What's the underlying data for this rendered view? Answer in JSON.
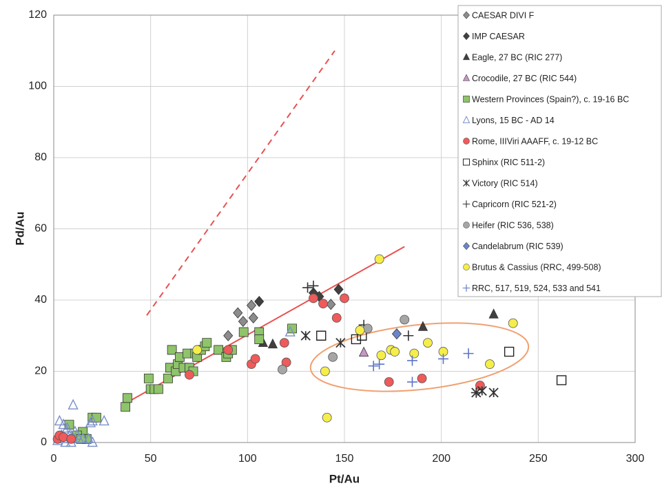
{
  "chart_data": {
    "type": "scatter",
    "x_label": "Pt/Au",
    "y_label": "Pd/Au",
    "xlim": [
      0,
      300
    ],
    "ylim": [
      0,
      120
    ],
    "xticks": [
      0,
      50,
      100,
      150,
      200,
      250,
      300
    ],
    "yticks": [
      0,
      20,
      40,
      60,
      80,
      100,
      120
    ],
    "grid": true,
    "legend": "top-right",
    "fit_lines": [
      {
        "x": [
          37,
          181
        ],
        "y": [
          11,
          55
        ],
        "color": "#e8504f",
        "dashed": false
      },
      {
        "x": [
          48,
          145
        ],
        "y": [
          35.7,
          110
        ],
        "color": "#e8504f",
        "dashed": true
      }
    ],
    "series": [
      {
        "name": "CAESAR DIVI F",
        "marker": "diamond",
        "color": "#8c8c8c",
        "x": [
          90,
          95,
          97.7,
          103,
          102,
          143
        ],
        "y": [
          30,
          36.4,
          34,
          35,
          38.5,
          38.8
        ]
      },
      {
        "name": "IMP CAESAR",
        "marker": "diamond",
        "color": "#404040",
        "x": [
          106,
          137,
          147,
          134
        ],
        "y": [
          39.6,
          41,
          43,
          42
        ]
      },
      {
        "name": "Eagle, 27 BC (RIC 277)",
        "marker": "triangle",
        "color": "#404040",
        "x": [
          108,
          113,
          190.5,
          227
        ],
        "y": [
          28,
          27.6,
          32.5,
          36
        ]
      },
      {
        "name": "Crocodile, 27 BC (RIC 544)",
        "marker": "triangle",
        "color": "#c896c8",
        "x": [
          160
        ],
        "y": [
          25.3
        ]
      },
      {
        "name": "Western Provinces (Spain?), c. 19-16 BC",
        "marker": "square",
        "color": "#8fc46a",
        "x": [
          37,
          38,
          49,
          50,
          52,
          54,
          59,
          60,
          61,
          63,
          64,
          65,
          67,
          69,
          70,
          72,
          73,
          74,
          76,
          78,
          79,
          85,
          89,
          90,
          92,
          98,
          106,
          106,
          123,
          20,
          22,
          15,
          12,
          8,
          17,
          14
        ],
        "y": [
          10,
          12.5,
          18,
          15,
          15,
          15,
          18,
          21,
          26,
          20,
          22,
          24,
          21,
          25,
          21,
          20,
          25,
          24,
          26,
          27,
          28,
          26,
          24,
          25,
          26,
          31,
          31,
          29,
          32,
          7,
          7,
          3,
          2,
          5,
          1,
          1
        ]
      },
      {
        "name": "Lyons, 15 BC - AD 14",
        "marker": "open-triangle",
        "color": "#7a8fc8",
        "x": [
          10,
          3,
          5,
          7,
          19,
          20,
          26,
          4,
          6,
          8,
          9,
          10,
          12,
          13,
          15,
          2,
          5,
          6,
          9,
          18,
          20,
          11,
          122
        ],
        "y": [
          10.5,
          6,
          5,
          4,
          5.5,
          6,
          6,
          2,
          3,
          2,
          1,
          1,
          2,
          1,
          1,
          0.5,
          1,
          0,
          0,
          1,
          0,
          3,
          31
        ]
      },
      {
        "name": "Rome, IIIViri AAAFF, c. 19-12 BC",
        "marker": "circle",
        "color": "#ef5a5a",
        "x": [
          2,
          3,
          5,
          9,
          70,
          90,
          102,
          104,
          119,
          120,
          134,
          139,
          146,
          150,
          173,
          190,
          220
        ],
        "y": [
          1,
          2,
          1.5,
          1,
          19,
          26,
          22,
          23.5,
          28,
          22.5,
          40.5,
          39,
          35,
          40.5,
          17,
          18,
          16
        ]
      },
      {
        "name": "Sphinx (RIC 511-2)",
        "marker": "open-square",
        "color": "#222222",
        "x": [
          138,
          156,
          159,
          235,
          262
        ],
        "y": [
          30,
          29,
          30,
          25.5,
          17.5
        ]
      },
      {
        "name": "Victory (RIC 514)",
        "marker": "asterisk",
        "color": "#333333",
        "x": [
          130,
          148,
          218,
          221,
          227
        ],
        "y": [
          30,
          28,
          14,
          14.5,
          14
        ]
      },
      {
        "name": "Capricorn (RIC 521-2)",
        "marker": "plus",
        "color": "#333333",
        "x": [
          131,
          134,
          160,
          183,
          218
        ],
        "y": [
          43.5,
          44,
          33,
          30,
          14
        ]
      },
      {
        "name": "Heifer (RIC 536, 538)",
        "marker": "circle",
        "color": "#a6a6a6",
        "x": [
          118,
          144,
          162,
          181
        ],
        "y": [
          20.5,
          24,
          32,
          34.5
        ]
      },
      {
        "name": "Candelabrum (RIC 539)",
        "marker": "diamond",
        "color": "#6b86c8",
        "x": [
          177
        ],
        "y": [
          30.5
        ]
      },
      {
        "name": "Brutus & Cassius (RRC, 499-508)",
        "marker": "circle",
        "color": "#f5ee4a",
        "x": [
          74,
          140,
          141,
          158,
          168,
          169,
          174,
          176,
          186,
          193,
          201,
          225,
          237
        ],
        "y": [
          26,
          20,
          7,
          31.5,
          51.5,
          24.5,
          26,
          25.5,
          25,
          28,
          25.5,
          22,
          33.5
        ]
      },
      {
        "name": "RRC, 517, 519, 524, 533 and 541",
        "marker": "plus",
        "color": "#5b73c7",
        "x": [
          165,
          168,
          185,
          185,
          201,
          214
        ],
        "y": [
          21.5,
          22,
          23,
          17,
          23.5,
          25
        ]
      }
    ]
  }
}
